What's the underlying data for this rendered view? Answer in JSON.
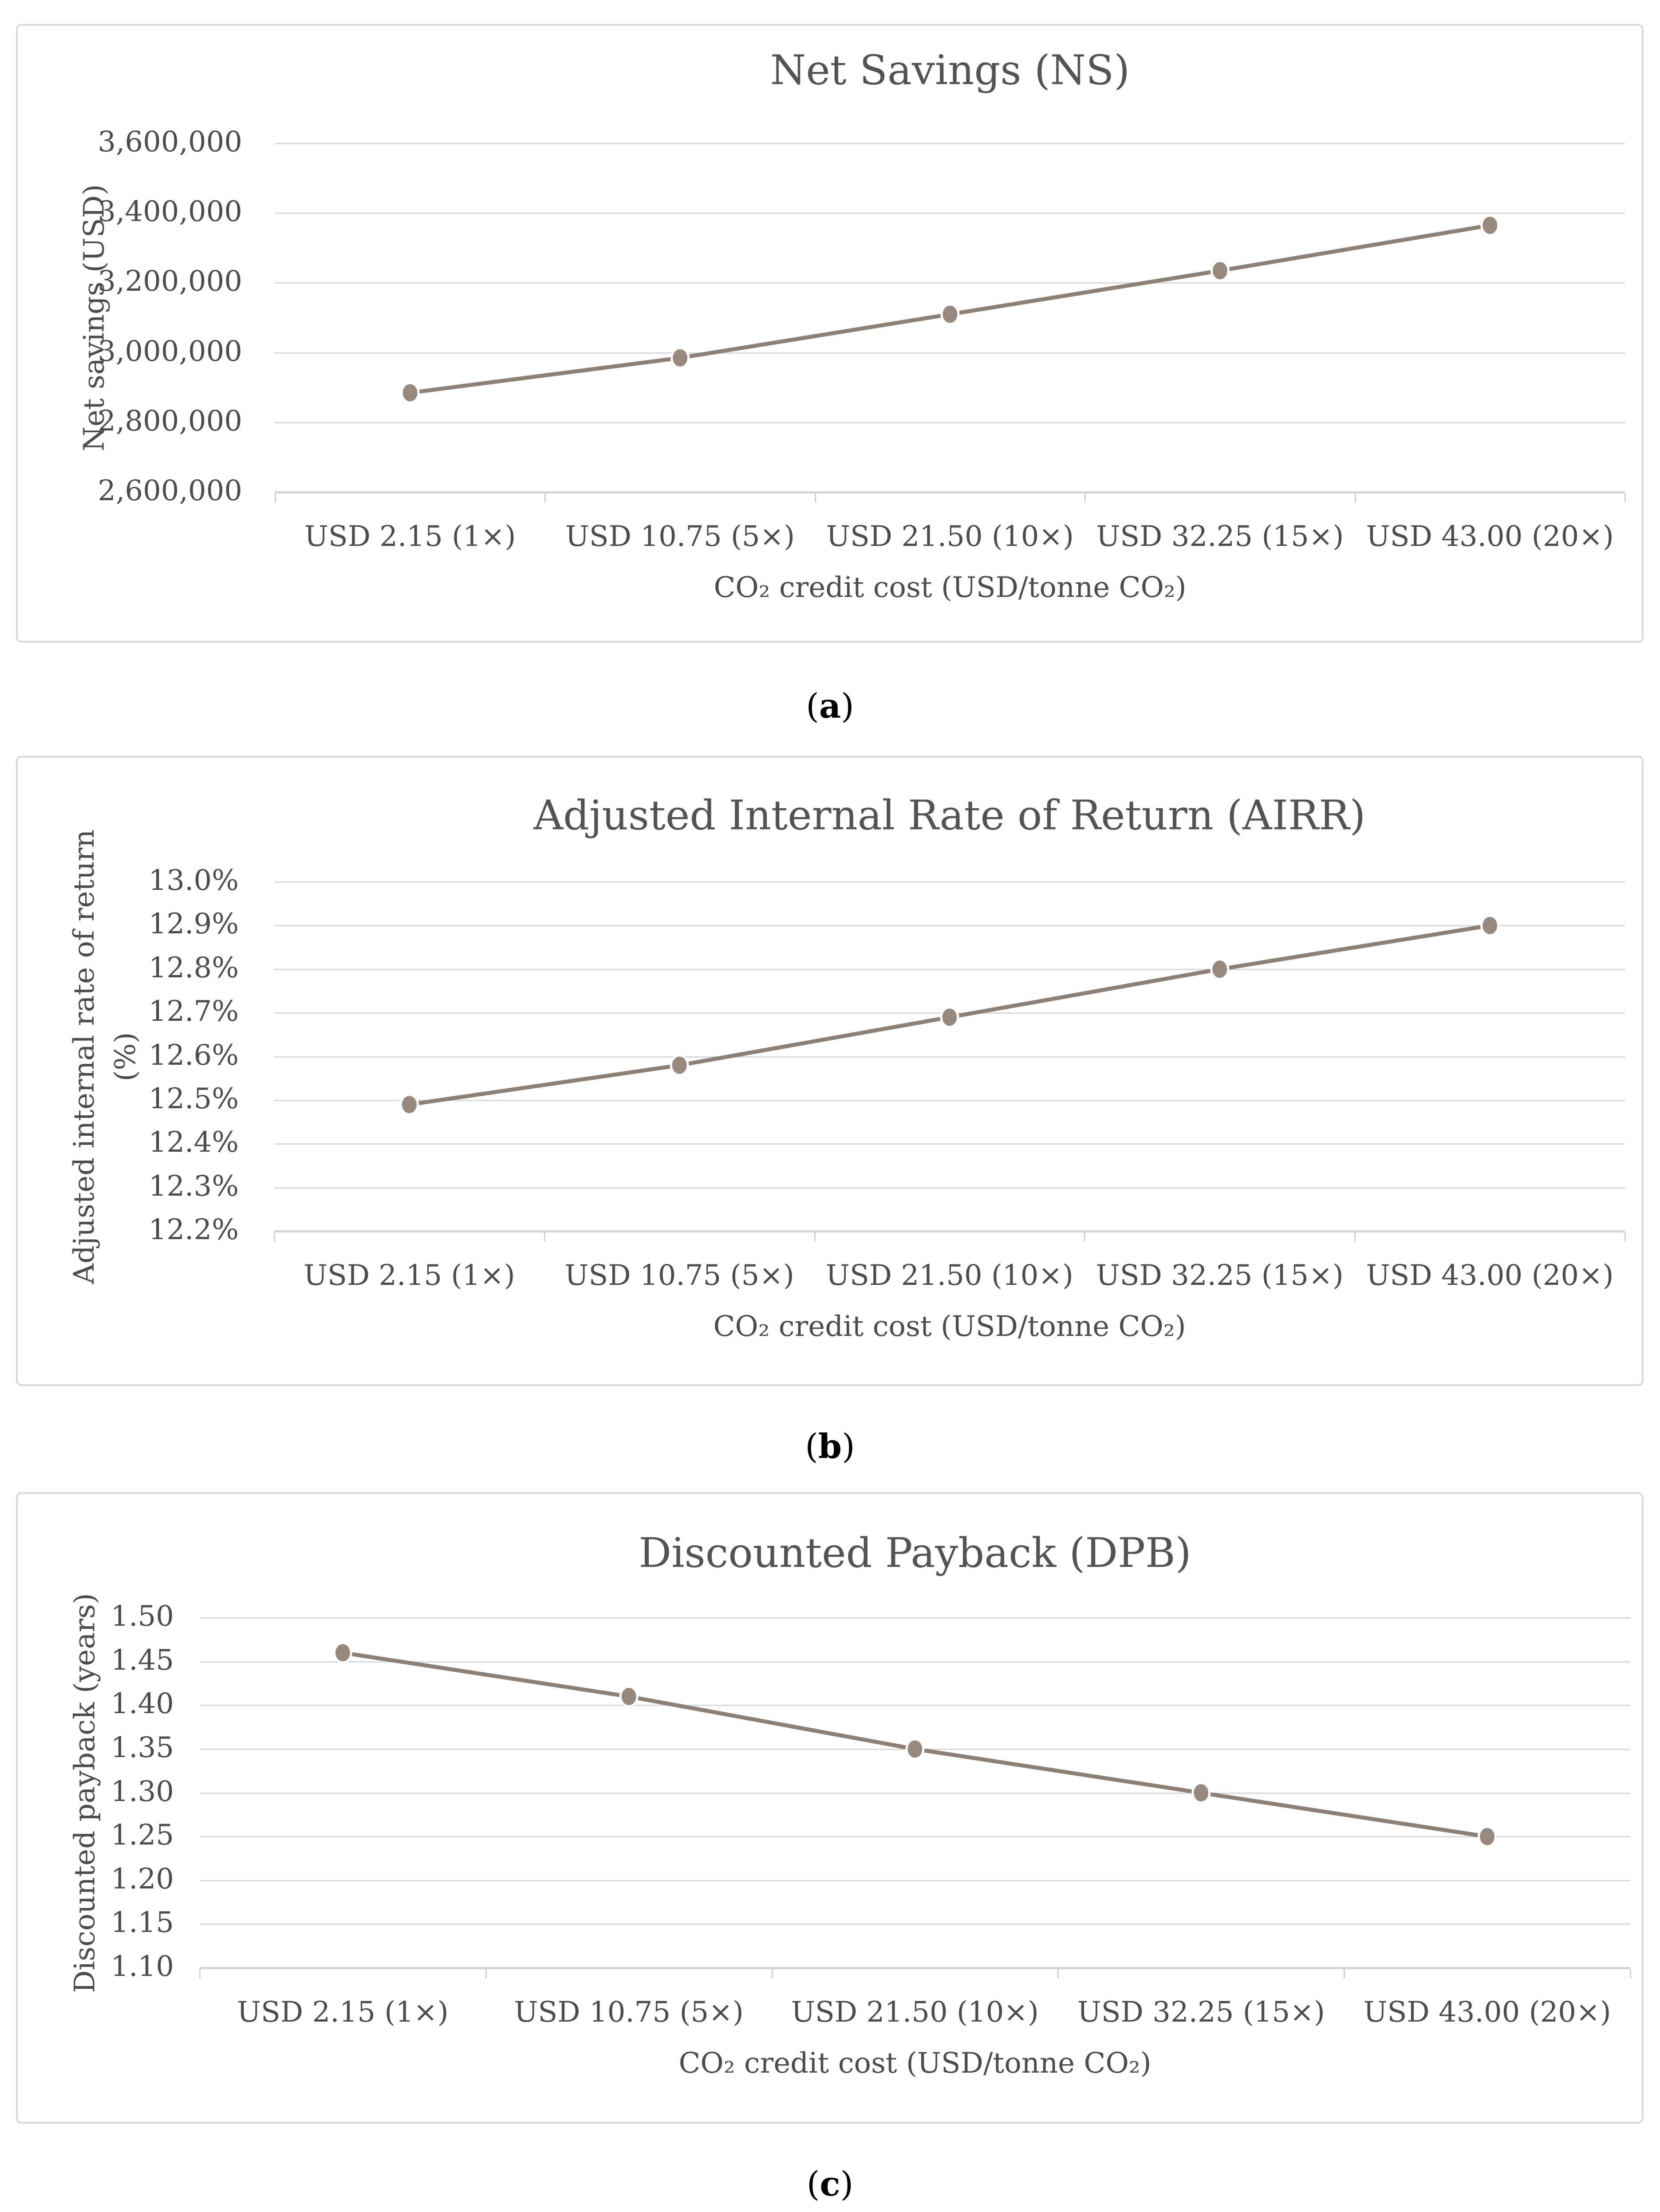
{
  "page": {
    "background": "#ffffff"
  },
  "colors": {
    "line": "#8d8076",
    "marker": "#97897d",
    "marker_halo": "#ffffff",
    "grid": "#d9d9d9",
    "axis": "#d4d4d4",
    "tick": "#cfcfcf",
    "label_text": "#4c4c4c",
    "title_text": "#535353",
    "caption_text": "#000000",
    "box_border": "#d9d9d9"
  },
  "chart_data": [
    {
      "type": "line",
      "title": "Net Savings (NS)",
      "ylabel": "Net savings (USD)",
      "xlabel": "CO₂ credit cost (USD/tonne CO₂)",
      "categories": [
        "USD 2.15 (1×)",
        "USD 10.75 (5×)",
        "USD 21.50 (10×)",
        "USD 32.25 (15×)",
        "USD 43.00 (20×)"
      ],
      "values": [
        2885000,
        2985000,
        3110000,
        3235000,
        3365000
      ],
      "y_ticks": [
        "3,600,000",
        "3,400,000",
        "3,200,000",
        "3,000,000",
        "2,800,000",
        "2,600,000"
      ],
      "ylim": [
        2600000,
        3600000
      ],
      "grid": true,
      "legend": "none",
      "caption_pre": "(",
      "caption_letter": "a",
      "caption_post": ")"
    },
    {
      "type": "line",
      "title": "Adjusted Internal Rate of Return (AIRR)",
      "ylabel": "Adjusted internal rate of return\n(%)",
      "xlabel": "CO₂ credit cost (USD/tonne CO₂)",
      "categories": [
        "USD 2.15 (1×)",
        "USD 10.75 (5×)",
        "USD 21.50 (10×)",
        "USD 32.25 (15×)",
        "USD 43.00 (20×)"
      ],
      "values": [
        12.49,
        12.58,
        12.69,
        12.8,
        12.9
      ],
      "y_ticks": [
        "13.0%",
        "12.9%",
        "12.8%",
        "12.7%",
        "12.6%",
        "12.5%",
        "12.4%",
        "12.3%",
        "12.2%"
      ],
      "ylim": [
        12.2,
        13.0
      ],
      "grid": true,
      "legend": "none",
      "caption_pre": "(",
      "caption_letter": "b",
      "caption_post": ")"
    },
    {
      "type": "line",
      "title": "Discounted Payback (DPB)",
      "ylabel": "Discounted payback (years)",
      "xlabel": "CO₂ credit cost (USD/tonne CO₂)",
      "categories": [
        "USD 2.15 (1×)",
        "USD 10.75 (5×)",
        "USD 21.50 (10×)",
        "USD 32.25 (15×)",
        "USD 43.00 (20×)"
      ],
      "values": [
        1.46,
        1.41,
        1.35,
        1.3,
        1.25
      ],
      "y_ticks": [
        "1.50",
        "1.45",
        "1.40",
        "1.35",
        "1.30",
        "1.25",
        "1.20",
        "1.15",
        "1.10"
      ],
      "ylim": [
        1.1,
        1.5
      ],
      "grid": true,
      "legend": "none",
      "caption_pre": "(",
      "caption_letter": "c",
      "caption_post": ")"
    }
  ]
}
